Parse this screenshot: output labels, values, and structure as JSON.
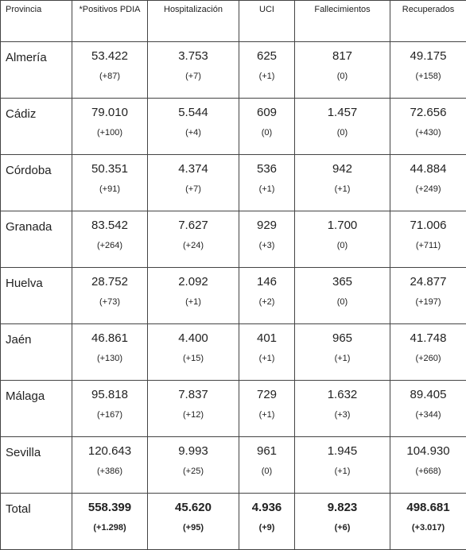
{
  "table": {
    "headers": [
      "Provincia",
      "*Positivos PDIA",
      "Hospitalización",
      "UCI",
      "Fallecimientos",
      "Recuperados"
    ],
    "rows": [
      {
        "name": "Almería",
        "cells": [
          [
            "53.422",
            "(+87)"
          ],
          [
            "3.753",
            "(+7)"
          ],
          [
            "625",
            "(+1)"
          ],
          [
            "817",
            "(0)"
          ],
          [
            "49.175",
            "(+158)"
          ]
        ]
      },
      {
        "name": "Cádiz",
        "cells": [
          [
            "79.010",
            "(+100)"
          ],
          [
            "5.544",
            "(+4)"
          ],
          [
            "609",
            "(0)"
          ],
          [
            "1.457",
            "(0)"
          ],
          [
            "72.656",
            "(+430)"
          ]
        ]
      },
      {
        "name": "Córdoba",
        "cells": [
          [
            "50.351",
            "(+91)"
          ],
          [
            "4.374",
            "(+7)"
          ],
          [
            "536",
            "(+1)"
          ],
          [
            "942",
            "(+1)"
          ],
          [
            "44.884",
            "(+249)"
          ]
        ]
      },
      {
        "name": "Granada",
        "cells": [
          [
            "83.542",
            "(+264)"
          ],
          [
            "7.627",
            "(+24)"
          ],
          [
            "929",
            "(+3)"
          ],
          [
            "1.700",
            "(0)"
          ],
          [
            "71.006",
            "(+711)"
          ]
        ]
      },
      {
        "name": "Huelva",
        "cells": [
          [
            "28.752",
            "(+73)"
          ],
          [
            "2.092",
            "(+1)"
          ],
          [
            "146",
            "(+2)"
          ],
          [
            "365",
            "(0)"
          ],
          [
            "24.877",
            "(+197)"
          ]
        ]
      },
      {
        "name": "Jaén",
        "cells": [
          [
            "46.861",
            "(+130)"
          ],
          [
            "4.400",
            "(+15)"
          ],
          [
            "401",
            "(+1)"
          ],
          [
            "965",
            "(+1)"
          ],
          [
            "41.748",
            "(+260)"
          ]
        ]
      },
      {
        "name": "Málaga",
        "cells": [
          [
            "95.818",
            "(+167)"
          ],
          [
            "7.837",
            "(+12)"
          ],
          [
            "729",
            "(+1)"
          ],
          [
            "1.632",
            "(+3)"
          ],
          [
            "89.405",
            "(+344)"
          ]
        ]
      },
      {
        "name": "Sevilla",
        "cells": [
          [
            "120.643",
            "(+386)"
          ],
          [
            "9.993",
            "(+25)"
          ],
          [
            "961",
            "(0)"
          ],
          [
            "1.945",
            "(+1)"
          ],
          [
            "104.930",
            "(+668)"
          ]
        ]
      },
      {
        "name": "Total",
        "cells": [
          [
            "558.399",
            "(+1.298)"
          ],
          [
            "45.620",
            "(+95)"
          ],
          [
            "4.936",
            "(+9)"
          ],
          [
            "9.823",
            "(+6)"
          ],
          [
            "498.681",
            "(+3.017)"
          ]
        ]
      }
    ]
  }
}
